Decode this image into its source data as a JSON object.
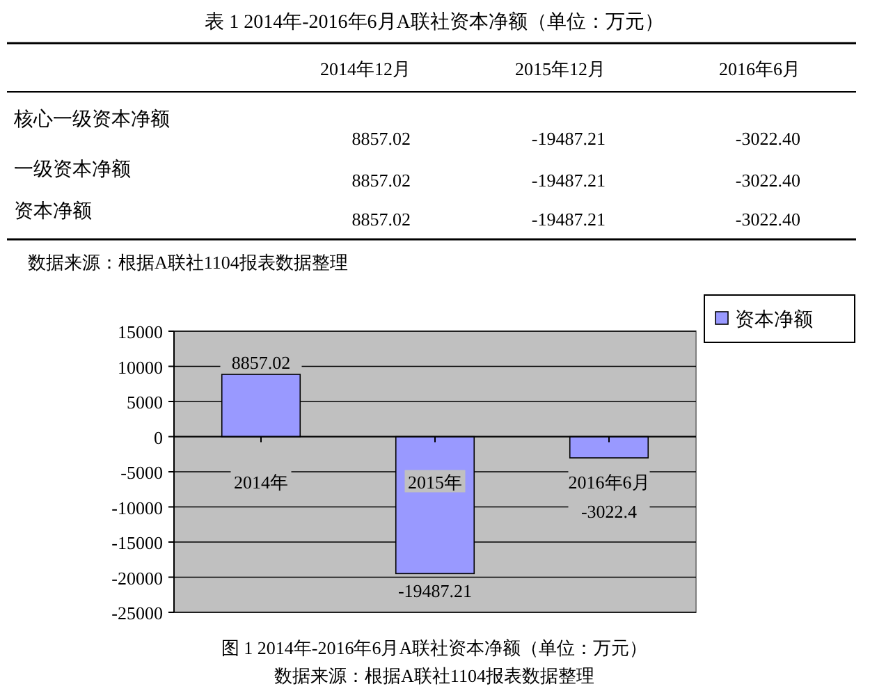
{
  "chart_data": [
    {
      "type": "other",
      "title": "表 1  2014年-2016年6月A联社资本净额（单位：万元）",
      "categories": [
        "2014年12月",
        "2015年12月",
        "2016年6月"
      ],
      "series": [
        {
          "name": "核心一级资本净额",
          "values": [
            8857.02,
            -19487.21,
            -3022.4
          ],
          "value_labels": [
            "8857.02",
            "-19487.21",
            "-3022.40"
          ]
        },
        {
          "name": "一级资本净额",
          "values": [
            8857.02,
            -19487.21,
            -3022.4
          ],
          "value_labels": [
            "8857.02",
            "-19487.21",
            "-3022.40"
          ]
        },
        {
          "name": "资本净额",
          "values": [
            8857.02,
            -19487.21,
            -3022.4
          ],
          "value_labels": [
            "8857.02",
            "-19487.21",
            "-3022.40"
          ]
        }
      ],
      "annotations": [
        "数据来源：根据A联社1104报表数据整理"
      ]
    },
    {
      "type": "bar",
      "title": "图 1  2014年-2016年6月A联社资本净额（单位：万元）",
      "categories": [
        "2014年",
        "2015年",
        "2016年6月"
      ],
      "series": [
        {
          "name": "资本净额",
          "color": "#9999ff",
          "values": [
            8857.02,
            -19487.21,
            -3022.4
          ],
          "value_labels": [
            "8857.02",
            "-19487.21",
            "-3022.4"
          ]
        }
      ],
      "ylim": [
        -25000,
        15000
      ],
      "yticks": [
        -25000,
        -20000,
        -15000,
        -10000,
        -5000,
        0,
        5000,
        10000,
        15000
      ],
      "grid": "y",
      "legend": "top right",
      "annotations": [
        "数据来源：根据A联社1104报表数据整理"
      ]
    }
  ]
}
